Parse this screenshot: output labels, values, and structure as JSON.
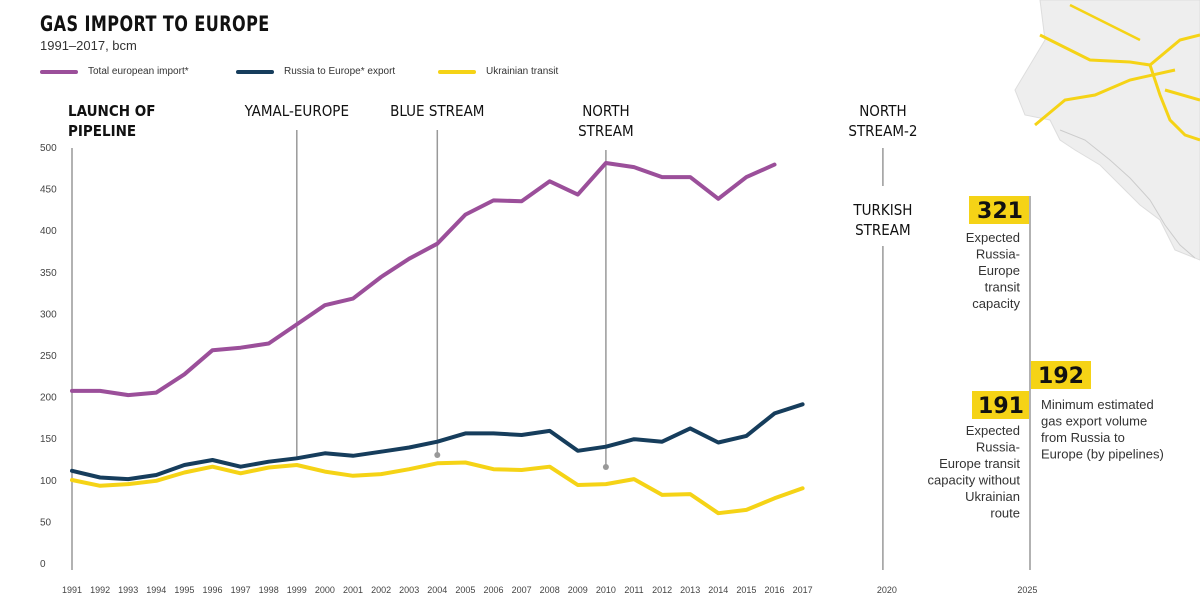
{
  "title": "GAS IMPORT TO EUROPE",
  "subtitle": "1991–2017, bcm",
  "legend": [
    {
      "label": "Total european import*",
      "color": "#9b4f9a"
    },
    {
      "label": "Russia to Europe* export",
      "color": "#163d5c"
    },
    {
      "label": "Ukrainian transit",
      "color": "#f5d316"
    }
  ],
  "pipelines": [
    {
      "label": "LAUNCH OF\nPIPELINE",
      "year": "1991"
    },
    {
      "label": "YAMAL-EUROPE",
      "year": "1999"
    },
    {
      "label": "BLUE STREAM",
      "year": "2004"
    },
    {
      "label": "NORTH\nSTREAM",
      "year": "2010"
    },
    {
      "label": "NORTH\nSTREAM-2",
      "year": "2020"
    },
    {
      "label": "TURKISH\nSTREAM",
      "year": "2020"
    }
  ],
  "capacity_2025": {
    "value_321": "321",
    "text_321": "Expected\nRussia-\nEurope\ntransit\ncapacity",
    "value_191": "191",
    "text_191": "Expected\nRussia-\nEurope transit\ncapacity without\nUkrainian\nroute",
    "value_192": "192",
    "text_192": "Minimum estimated\ngas export volume\nfrom Russia to\nEurope (by pipelines)"
  },
  "chart_data": {
    "type": "line",
    "title": "GAS IMPORT TO EUROPE",
    "subtitle": "1991–2017, bcm",
    "x": [
      "1991",
      "1992",
      "1993",
      "1994",
      "1995",
      "1996",
      "1997",
      "1998",
      "1999",
      "2000",
      "2001",
      "2002",
      "2003",
      "2004",
      "2005",
      "2006",
      "2007",
      "2008",
      "2009",
      "2010",
      "2011",
      "2012",
      "2013",
      "2014",
      "2015",
      "2016",
      "2017"
    ],
    "extra_ticks": [
      "2020",
      "2025"
    ],
    "ylim": [
      0,
      500
    ],
    "yticks": [
      0,
      50,
      100,
      150,
      200,
      250,
      300,
      350,
      400,
      450,
      500
    ],
    "grid": false,
    "legend_position": "top-left",
    "series": [
      {
        "name": "Total european import*",
        "color": "#9b4f9a",
        "values": [
          208,
          208,
          203,
          206,
          228,
          257,
          260,
          265,
          288,
          311,
          319,
          345,
          367,
          385,
          420,
          437,
          436,
          460,
          444,
          482,
          477,
          465,
          465,
          439,
          465,
          480,
          null
        ]
      },
      {
        "name": "Russia to Europe* export",
        "color": "#163d5c",
        "values": [
          112,
          104,
          102,
          107,
          119,
          125,
          117,
          123,
          127,
          133,
          130,
          135,
          140,
          147,
          157,
          157,
          155,
          160,
          136,
          141,
          150,
          147,
          163,
          146,
          154,
          181,
          192
        ]
      },
      {
        "name": "Ukrainian transit",
        "color": "#f5d316",
        "values": [
          101,
          94,
          96,
          100,
          110,
          117,
          109,
          116,
          119,
          111,
          106,
          108,
          114,
          121,
          122,
          114,
          113,
          117,
          95,
          96,
          102,
          83,
          84,
          61,
          65,
          79,
          91
        ]
      }
    ]
  }
}
